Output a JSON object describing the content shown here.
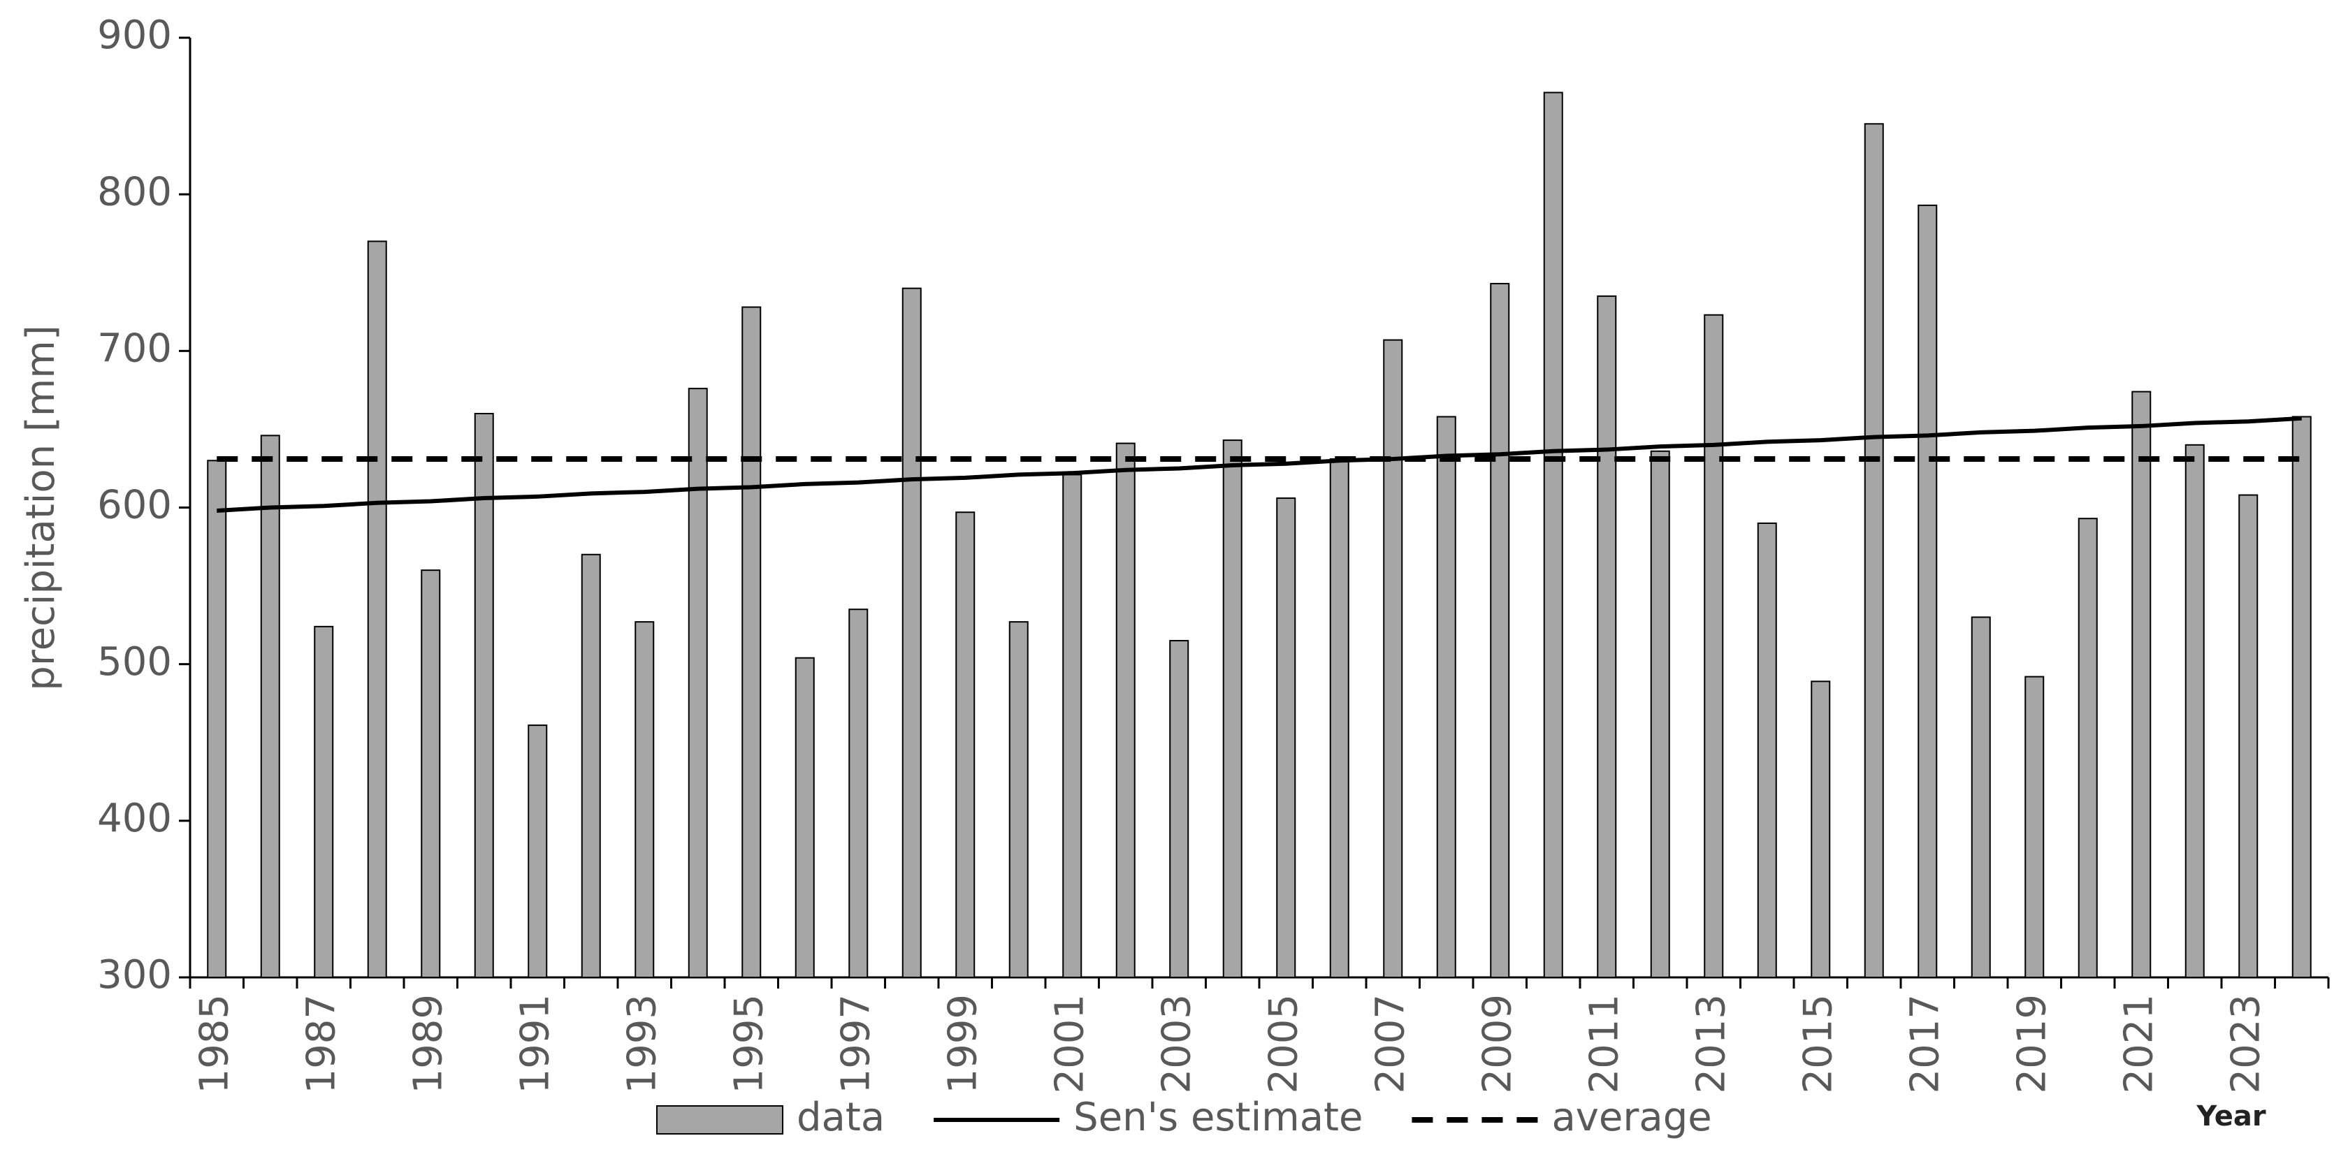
{
  "chart_data": {
    "type": "bar",
    "y_label": "precipitation [mm]",
    "x_label": "Year",
    "categories": [
      "1985",
      null,
      "1987",
      null,
      "1989",
      null,
      "1991",
      null,
      "1993",
      null,
      "1995",
      null,
      "1997",
      null,
      "1999",
      null,
      "2001",
      null,
      "2003",
      null,
      "2005",
      null,
      "2007",
      null,
      "2009",
      null,
      "2011",
      null,
      "2013",
      null,
      "2015",
      null,
      "2017",
      null,
      "2019",
      null,
      "2021",
      null,
      "2023",
      null
    ],
    "series": [
      {
        "name": "data",
        "type": "bar",
        "color": "#a6a6a6",
        "values": [
          630,
          646,
          524,
          770,
          560,
          660,
          461,
          570,
          527,
          676,
          728,
          504,
          535,
          740,
          597,
          527,
          621,
          641,
          515,
          643,
          606,
          631,
          707,
          658,
          743,
          865,
          735,
          636,
          723,
          590,
          489,
          845,
          793,
          530,
          492,
          593,
          674,
          640,
          608,
          658
        ]
      },
      {
        "name": "Sen's estimate",
        "type": "line",
        "dashed": false,
        "color": "#000000",
        "values": [
          598,
          600,
          601,
          603,
          604,
          606,
          607,
          609,
          610,
          612,
          613,
          615,
          616,
          618,
          619,
          621,
          622,
          624,
          625,
          627,
          628,
          630,
          631,
          633,
          634,
          636,
          637,
          639,
          640,
          642,
          643,
          645,
          646,
          648,
          649,
          651,
          652,
          654,
          655,
          657
        ]
      },
      {
        "name": "average",
        "type": "line",
        "dashed": true,
        "color": "#000000",
        "values": [
          631,
          631,
          631,
          631,
          631,
          631,
          631,
          631,
          631,
          631,
          631,
          631,
          631,
          631,
          631,
          631,
          631,
          631,
          631,
          631,
          631,
          631,
          631,
          631,
          631,
          631,
          631,
          631,
          631,
          631,
          631,
          631,
          631,
          631,
          631,
          631,
          631,
          631,
          631,
          631
        ]
      }
    ],
    "ylim": [
      300,
      900
    ],
    "yticks": [
      300,
      400,
      500,
      600,
      700,
      800,
      900
    ],
    "grid": false,
    "legend": "bottom"
  }
}
